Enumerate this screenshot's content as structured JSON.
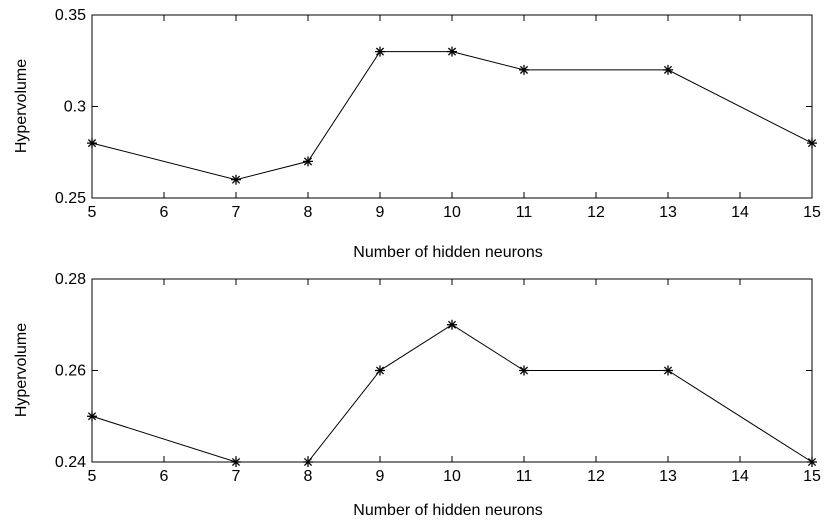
{
  "chart_data": [
    {
      "type": "line",
      "xlabel": "Number of hidden neurons",
      "ylabel": "Hypervolume",
      "x": [
        5,
        7,
        8,
        9,
        10,
        11,
        13,
        15
      ],
      "series": [
        {
          "values": [
            0.28,
            0.26,
            0.27,
            0.33,
            0.33,
            0.32,
            0.32,
            0.28
          ],
          "marker": "asterisk",
          "color": "#000000"
        }
      ],
      "xlim": [
        5,
        15
      ],
      "ylim": [
        0.25,
        0.35
      ],
      "xticks": [
        5,
        6,
        7,
        8,
        9,
        10,
        11,
        12,
        13,
        14,
        15
      ],
      "yticks": [
        0.25,
        0.3,
        0.35
      ],
      "ytick_labels": [
        "0.25",
        "0.3",
        "0.35"
      ],
      "grid": false
    },
    {
      "type": "line",
      "xlabel": "Number of hidden neurons",
      "ylabel": "Hypervolume",
      "x": [
        5,
        7,
        8,
        9,
        10,
        11,
        13,
        15
      ],
      "series": [
        {
          "values": [
            0.25,
            0.24,
            0.24,
            0.26,
            0.27,
            0.26,
            0.26,
            0.24
          ],
          "marker": "asterisk",
          "color": "#000000"
        }
      ],
      "xlim": [
        5,
        15
      ],
      "ylim": [
        0.24,
        0.28
      ],
      "xticks": [
        5,
        6,
        7,
        8,
        9,
        10,
        11,
        12,
        13,
        14,
        15
      ],
      "yticks": [
        0.24,
        0.26,
        0.28
      ],
      "ytick_labels": [
        "0.24",
        "0.26",
        "0.28"
      ],
      "grid": false
    }
  ]
}
